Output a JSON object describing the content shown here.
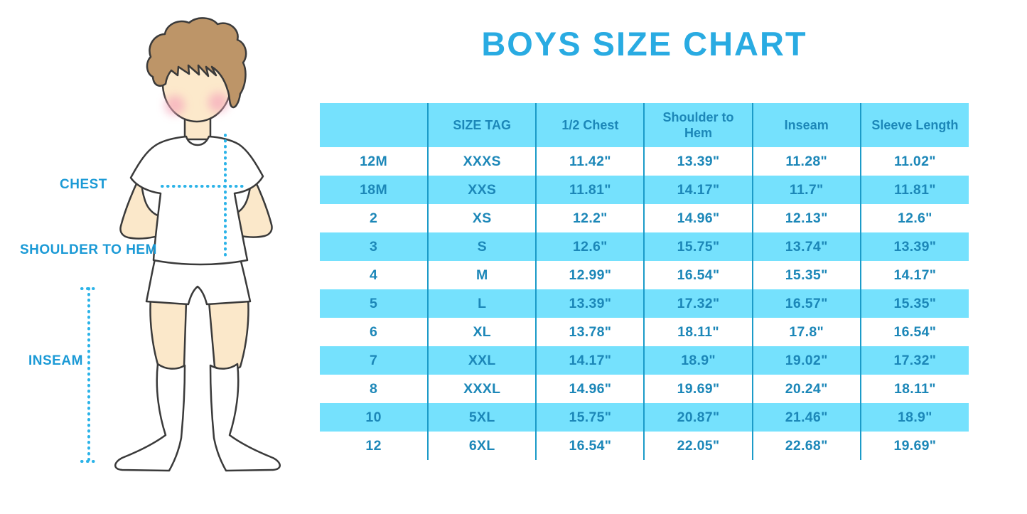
{
  "title": "BOYS SIZE CHART",
  "figure_labels": {
    "chest": "CHEST",
    "shoulder_to_hem": "SHOULDER TO HEM",
    "inseam": "INSEAM"
  },
  "colors": {
    "accent_blue": "#29ABE2",
    "label_blue": "#1B9AD6",
    "table_fill_cyan": "#75E1FD",
    "table_text_blue": "#1C87B8",
    "grid_line_blue": "#1C9BC8",
    "dotted_line_cyan": "#2BB3E8",
    "skin": "#FBE8CA",
    "hair_brown": "#BD9568"
  },
  "chart_data": {
    "type": "table",
    "title": "BOYS SIZE CHART",
    "columns": [
      "",
      "SIZE TAG",
      "1/2 Chest",
      "Shoulder to Hem",
      "Inseam",
      "Sleeve Length"
    ],
    "rows": [
      [
        "12M",
        "XXXS",
        "11.42\"",
        "13.39\"",
        "11.28\"",
        "11.02\""
      ],
      [
        "18M",
        "XXS",
        "11.81\"",
        "14.17\"",
        "11.7\"",
        "11.81\""
      ],
      [
        "2",
        "XS",
        "12.2\"",
        "14.96\"",
        "12.13\"",
        "12.6\""
      ],
      [
        "3",
        "S",
        "12.6\"",
        "15.75\"",
        "13.74\"",
        "13.39\""
      ],
      [
        "4",
        "M",
        "12.99\"",
        "16.54\"",
        "15.35\"",
        "14.17\""
      ],
      [
        "5",
        "L",
        "13.39\"",
        "17.32\"",
        "16.57\"",
        "15.35\""
      ],
      [
        "6",
        "XL",
        "13.78\"",
        "18.11\"",
        "17.8\"",
        "16.54\""
      ],
      [
        "7",
        "XXL",
        "14.17\"",
        "18.9\"",
        "19.02\"",
        "17.32\""
      ],
      [
        "8",
        "XXXL",
        "14.96\"",
        "19.69\"",
        "20.24\"",
        "18.11\""
      ],
      [
        "10",
        "5XL",
        "15.75\"",
        "20.87\"",
        "21.46\"",
        "18.9\""
      ],
      [
        "12",
        "6XL",
        "16.54\"",
        "22.05\"",
        "22.68\"",
        "19.69\""
      ]
    ],
    "row_striping": [
      "white",
      "cyan"
    ],
    "header_fill": "cyan",
    "grid": "vertical-lines-only",
    "legend_position": "none"
  }
}
